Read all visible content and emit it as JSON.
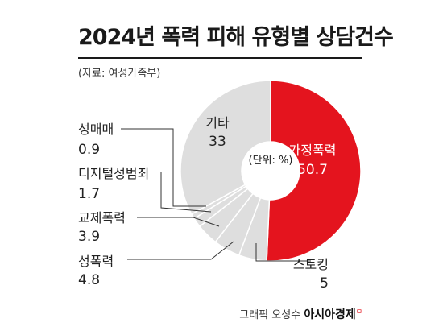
{
  "title": "2024년 폭력 피해 유형별 상담건수",
  "source": "(자료: 여성가족부)",
  "credit": {
    "prefix": "그래픽 오성수",
    "brand": "아시아경제",
    "mark": "ㅁ"
  },
  "chart_data": {
    "type": "pie",
    "style": "donut",
    "unit_label": "(단위: %)",
    "slices": [
      {
        "label": "가정폭력",
        "value": 50.7,
        "color": "#e4141e"
      },
      {
        "label": "스토킹",
        "value": 5.0,
        "color": "#dedede"
      },
      {
        "label": "성폭력",
        "value": 4.8,
        "color": "#dedede"
      },
      {
        "label": "교제폭력",
        "value": 3.9,
        "color": "#dedede"
      },
      {
        "label": "디지털성범죄",
        "value": 1.7,
        "color": "#dedede"
      },
      {
        "label": "성매매",
        "value": 0.9,
        "color": "#dedede"
      },
      {
        "label": "기타",
        "value": 33,
        "color": "#dedede"
      }
    ]
  }
}
